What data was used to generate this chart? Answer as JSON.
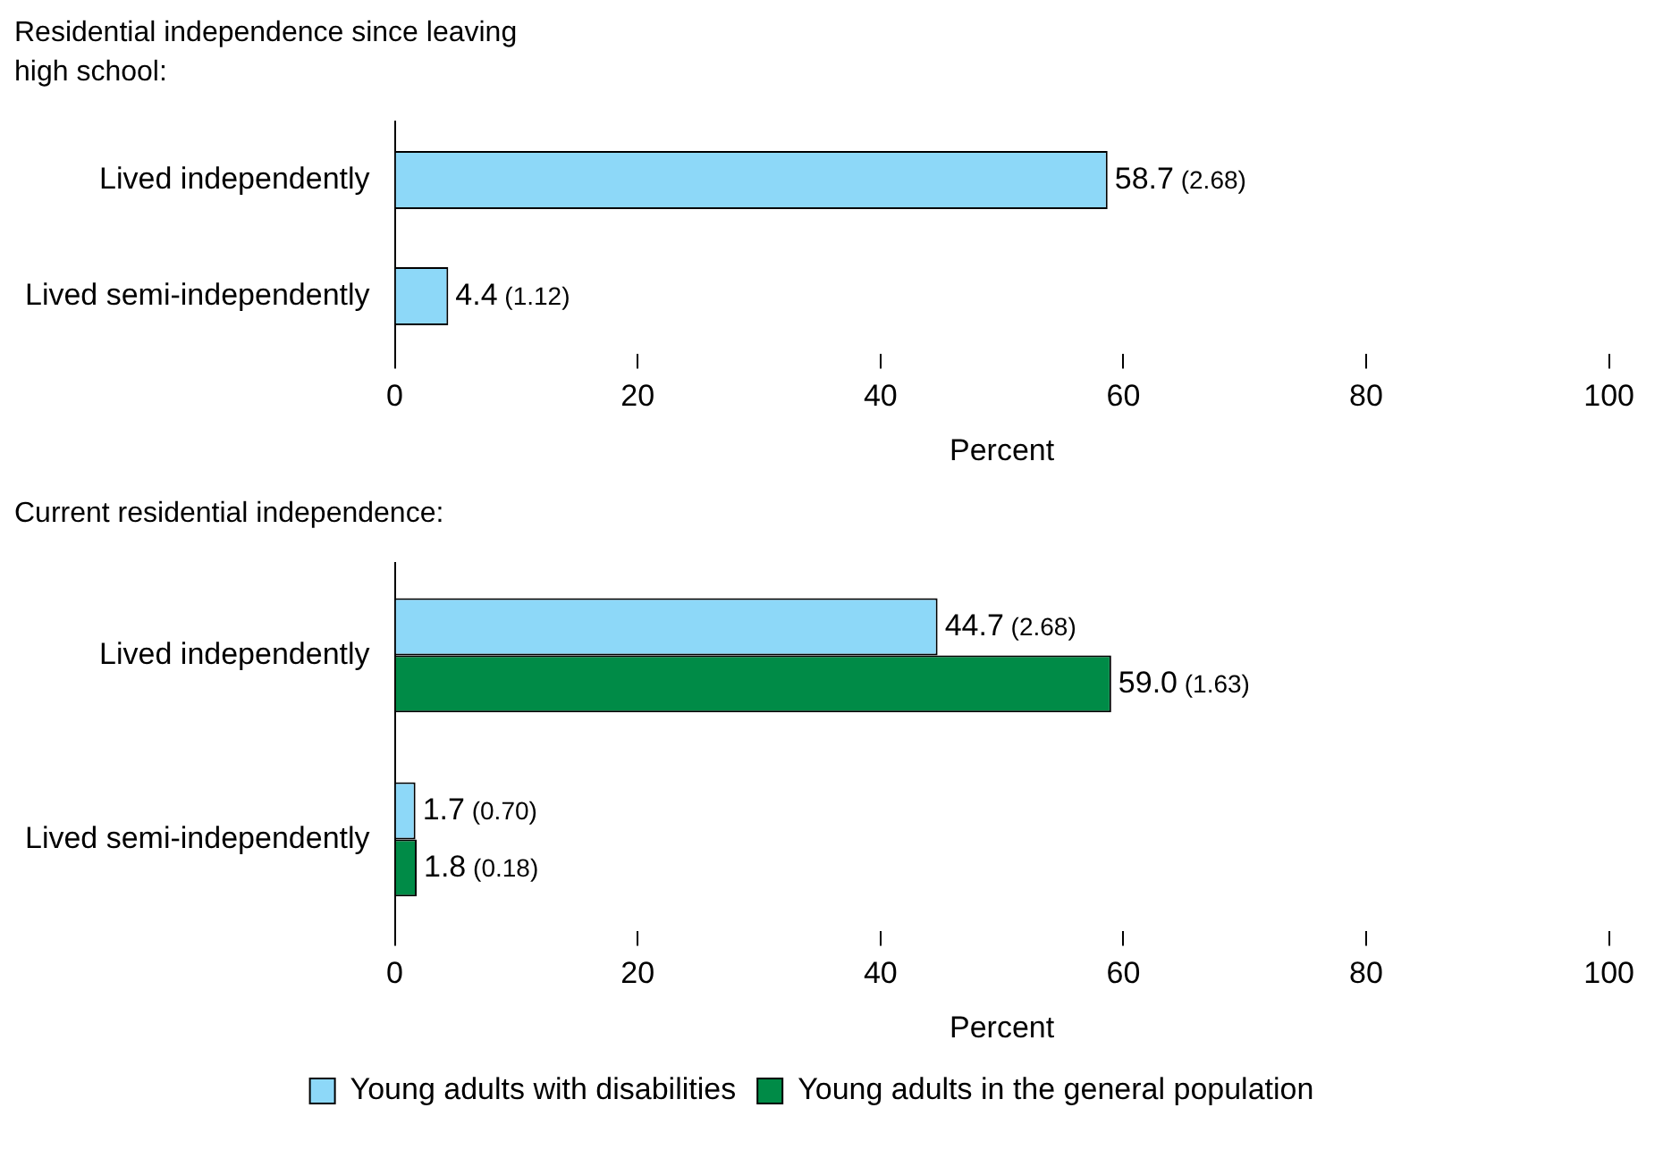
{
  "chart_data": [
    {
      "type": "bar",
      "orientation": "horizontal",
      "title": "Residential independence since leaving high school:",
      "xlabel": "Percent",
      "categories": [
        "Lived independently",
        "Lived semi-independently"
      ],
      "series": [
        {
          "color": "#8dd8f8",
          "values": [
            58.7,
            4.4
          ],
          "value_labels": [
            "58.7 (2.68)",
            "4.4 (1.12)"
          ]
        }
      ],
      "xlim": [
        0,
        100
      ],
      "xticks": [
        0,
        20,
        40,
        60,
        80,
        100
      ],
      "grid": false,
      "legend": false
    },
    {
      "type": "bar",
      "orientation": "horizontal",
      "title": "Current residential independence:",
      "xlabel": "Percent",
      "categories": [
        "Lived independently",
        "Lived semi-independently"
      ],
      "series": [
        {
          "name": "Young adults with disabilities",
          "color": "#8dd8f8",
          "values": [
            44.7,
            1.7
          ],
          "value_labels": [
            "44.7 (2.68)",
            "1.7 (0.70)"
          ]
        },
        {
          "name": "Young adults in the general population",
          "color": "#008b47",
          "values": [
            59.0,
            1.8
          ],
          "value_labels": [
            "59.0 (1.63)",
            "1.8 (0.18)"
          ]
        }
      ],
      "xlim": [
        0,
        100
      ],
      "xticks": [
        0,
        20,
        40,
        60,
        80,
        100
      ],
      "grid": false,
      "legend": "bottom"
    }
  ]
}
